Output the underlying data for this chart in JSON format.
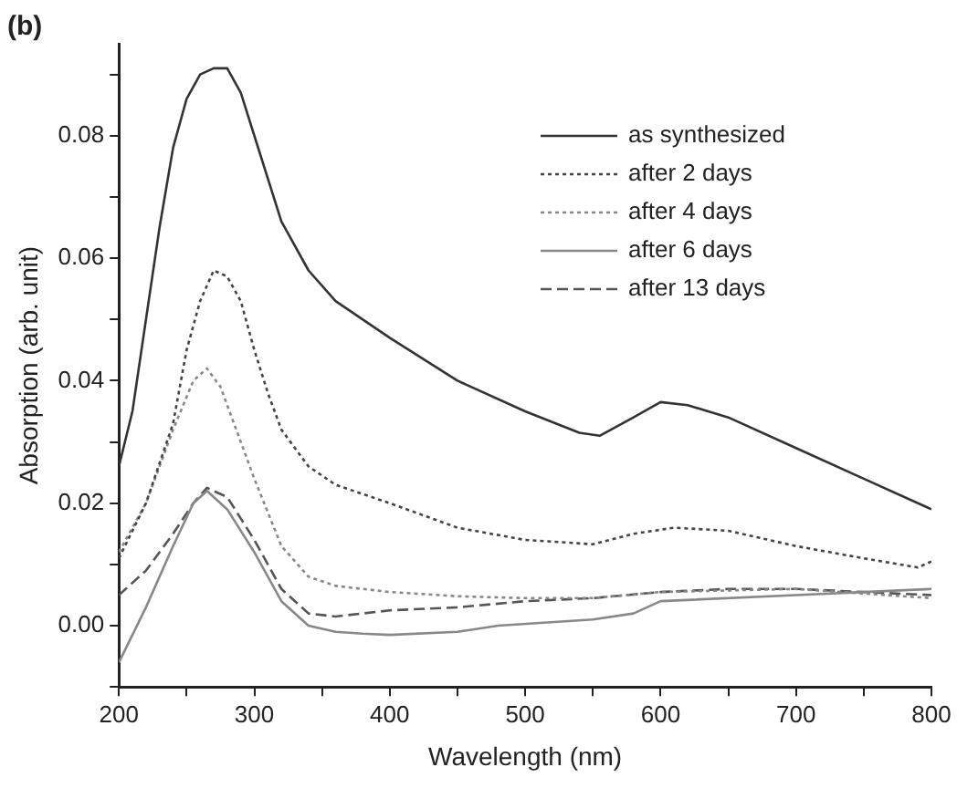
{
  "chart_data": {
    "type": "line",
    "title": "(b)",
    "xlabel": "Wavelength (nm)",
    "ylabel": "Absorption (arb. unit)",
    "xlim": [
      200,
      800
    ],
    "ylim": [
      -0.01,
      0.095
    ],
    "xticks": [
      200,
      {
        "value": 250,
        "label": null
      },
      300,
      {
        "value": 350,
        "label": null
      },
      400,
      {
        "value": 450,
        "label": null
      },
      500,
      {
        "value": 550,
        "label": null
      },
      600,
      {
        "value": 650,
        "label": null
      },
      700,
      {
        "value": 750,
        "label": null
      },
      800
    ],
    "yticks": [
      {
        "value": -0.01,
        "label": null
      },
      {
        "value": 0,
        "label": "0.00"
      },
      {
        "value": 0.01,
        "label": null
      },
      {
        "value": 0.02,
        "label": "0.02"
      },
      {
        "value": 0.03,
        "label": null
      },
      {
        "value": 0.04,
        "label": "0.04"
      },
      {
        "value": 0.05,
        "label": null
      },
      {
        "value": 0.06,
        "label": "0.06"
      },
      {
        "value": 0.07,
        "label": null
      },
      {
        "value": 0.08,
        "label": "0.08"
      },
      {
        "value": 0.09,
        "label": null
      }
    ],
    "grid": false,
    "legend": "top right",
    "marker": "none",
    "series": [
      {
        "name": "as synthesized",
        "color": "#333333",
        "line_style": "solid",
        "x": [
          200,
          210,
          220,
          230,
          240,
          250,
          260,
          270,
          280,
          290,
          300,
          320,
          340,
          360,
          400,
          450,
          500,
          540,
          555,
          580,
          600,
          620,
          650,
          700,
          750,
          800
        ],
        "values": [
          0.026,
          0.035,
          0.05,
          0.065,
          0.078,
          0.086,
          0.09,
          0.091,
          0.091,
          0.087,
          0.08,
          0.066,
          0.058,
          0.053,
          0.047,
          0.04,
          0.035,
          0.0315,
          0.031,
          0.034,
          0.0365,
          0.036,
          0.034,
          0.029,
          0.024,
          0.019
        ]
      },
      {
        "name": "after 2 days",
        "color": "#444444",
        "line_style": "dotted",
        "x": [
          200,
          220,
          240,
          250,
          260,
          270,
          280,
          290,
          300,
          310,
          320,
          340,
          360,
          400,
          450,
          500,
          550,
          580,
          610,
          650,
          700,
          750,
          790,
          800
        ],
        "values": [
          0.011,
          0.02,
          0.033,
          0.045,
          0.053,
          0.058,
          0.057,
          0.053,
          0.045,
          0.038,
          0.032,
          0.026,
          0.023,
          0.02,
          0.016,
          0.014,
          0.0133,
          0.015,
          0.016,
          0.0155,
          0.013,
          0.011,
          0.0095,
          0.0105
        ]
      },
      {
        "name": "after 4 days",
        "color": "#888888",
        "line_style": "dotted",
        "x": [
          200,
          220,
          240,
          255,
          265,
          275,
          290,
          300,
          320,
          340,
          360,
          400,
          450,
          500,
          550,
          600,
          700,
          800
        ],
        "values": [
          0.012,
          0.02,
          0.032,
          0.04,
          0.042,
          0.039,
          0.03,
          0.024,
          0.013,
          0.008,
          0.0065,
          0.0055,
          0.0048,
          0.0045,
          0.0045,
          0.0055,
          0.006,
          0.0045
        ]
      },
      {
        "name": "after 6 days",
        "color": "#888888",
        "line_style": "solid",
        "x": [
          200,
          220,
          240,
          255,
          265,
          280,
          300,
          320,
          340,
          360,
          380,
          400,
          450,
          480,
          550,
          580,
          600,
          700,
          750,
          800
        ],
        "values": [
          -0.006,
          0.003,
          0.013,
          0.02,
          0.022,
          0.019,
          0.012,
          0.004,
          0.0,
          -0.001,
          -0.0013,
          -0.0015,
          -0.001,
          0.0,
          0.001,
          0.002,
          0.004,
          0.005,
          0.0055,
          0.006
        ]
      },
      {
        "name": "after 13 days",
        "color": "#555555",
        "line_style": "dashed",
        "x": [
          200,
          220,
          240,
          255,
          265,
          280,
          300,
          320,
          340,
          360,
          400,
          450,
          500,
          550,
          600,
          650,
          700,
          750,
          800
        ],
        "values": [
          0.005,
          0.009,
          0.015,
          0.02,
          0.0225,
          0.021,
          0.014,
          0.006,
          0.002,
          0.0015,
          0.0025,
          0.003,
          0.004,
          0.0045,
          0.0055,
          0.006,
          0.006,
          0.0055,
          0.005
        ]
      }
    ]
  }
}
